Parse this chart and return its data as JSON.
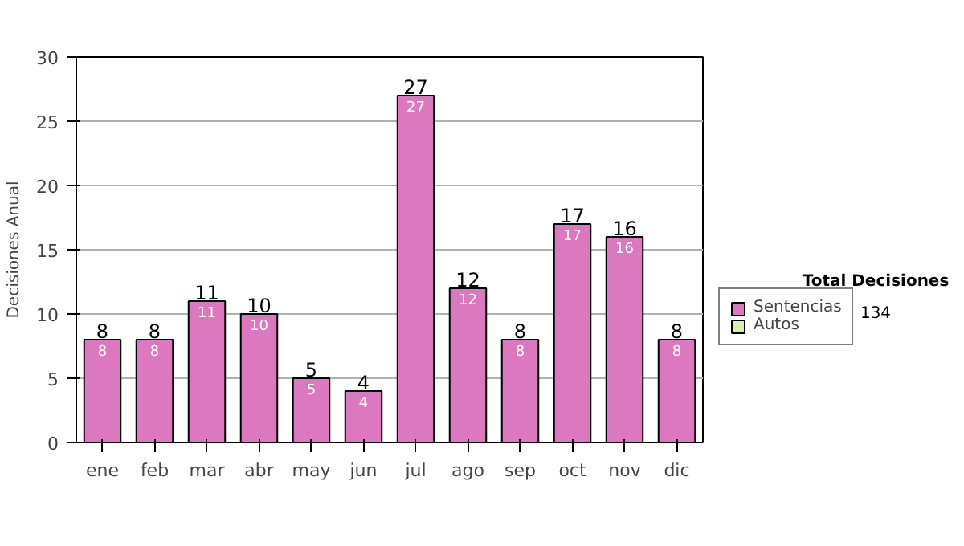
{
  "chart_data": {
    "type": "bar",
    "ylabel": "Decisiones Anual",
    "categories": [
      "ene",
      "feb",
      "mar",
      "abr",
      "may",
      "jun",
      "jul",
      "ago",
      "sep",
      "oct",
      "nov",
      "dic"
    ],
    "stacked": true,
    "series": [
      {
        "name": "Sentencias",
        "color": "#dc78c0",
        "values": [
          8,
          8,
          11,
          10,
          5,
          4,
          27,
          12,
          8,
          17,
          16,
          8
        ]
      },
      {
        "name": "Autos",
        "color": "#d8f0a8",
        "values": [
          null,
          null,
          null,
          null,
          null,
          null,
          null,
          null,
          null,
          null,
          null,
          null
        ]
      }
    ],
    "data_labels": true,
    "totals": [
      "8",
      "8",
      "11",
      "10",
      "5",
      "4",
      "27",
      "12",
      "8",
      "17",
      "16",
      "8"
    ],
    "ylim": [
      0,
      30
    ],
    "yticks": [
      0,
      5,
      10,
      15,
      20,
      25,
      30
    ],
    "grid": "y",
    "legend": "right",
    "annotations": [
      "Total Decisiones",
      "134"
    ]
  }
}
